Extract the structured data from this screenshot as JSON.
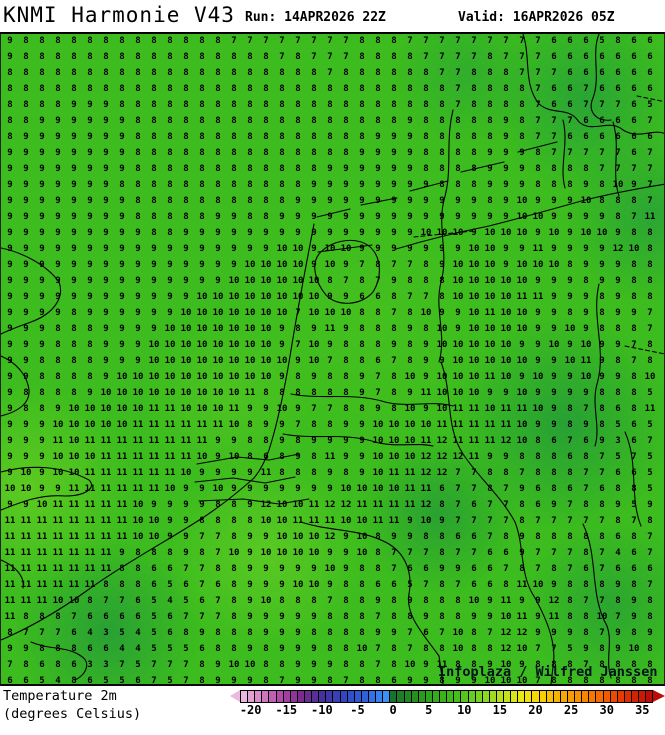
{
  "header": {
    "title": "KNMI Harmonie V43",
    "run_label": "Run: 14APR2026 22Z",
    "valid_label": "Valid: 16APR2026 05Z"
  },
  "map": {
    "attribution": "Infoplaza / Wilfred Janssen"
  },
  "footer": {
    "label_line1": "Temperature 2m",
    "label_line2": "(degrees Celsius)"
  },
  "chart_data": {
    "type": "heatmap",
    "title": "KNMI Harmonie V43 2m temperature",
    "run": "14APR2026 22Z",
    "valid": "16APR2026 05Z",
    "units": "degrees Celsius",
    "grid_note": "41x41 point values (degC) read left-to-right, top-to-bottom over North Sea / Netherlands / NW Germany domain",
    "grid_values": [
      "9 8 8 8 8 8 8 8 8 8 8 8 8 8 7 7 7 7 7 7 7 7 8 8 8 7 7 7 7 7 7 7 7 7 6 6 6 5 8 6 6",
      "9 8 8 8 8 8 8 8 8 8 8 8 8 8 8 8 8 7 8 7 7 7 8 8 8 8 7 7 7 7 8 7 7 7 6 6 6 6 6 6 6",
      "8 8 8 8 8 8 8 8 8 8 8 8 8 8 8 8 8 8 8 8 7 8 8 8 8 8 8 7 7 8 8 8 7 7 7 6 6 6 6 6 6",
      "8 8 8 8 8 8 8 8 8 8 8 8 8 8 8 8 8 8 8 8 8 8 8 8 8 8 8 8 7 8 8 8 8 7 6 6 7 6 6 6 6",
      "8 8 8 8 9 9 9 8 8 8 8 8 8 8 8 8 8 8 8 8 8 8 8 8 8 8 8 8 7 8 8 8 8 7 6 6 7 7 7 6 5",
      "8 8 9 9 9 9 9 9 8 8 8 8 8 8 8 8 8 8 8 8 8 8 8 8 8 9 8 8 8 8 8 9 8 7 7 7 6 6 6 6 7",
      "8 9 9 9 9 9 9 9 8 8 8 8 8 8 8 8 8 8 8 8 8 8 8 9 9 9 8 8 8 8 8 9 8 7 7 6 6 6 6 6 6",
      "9 9 9 9 9 9 9 9 8 8 8 8 8 8 8 8 8 8 8 8 8 8 9 9 9 9 8 8 8 8 9 9 9 8 7 7 7 7 7 6 7",
      "9 9 9 9 9 9 9 9 8 8 8 8 8 8 8 8 8 8 8 8 9 9 9 9 9 9 8 8 8 8 9 9 9 8 8 8 8 7 7 7 7",
      "9 9 9 9 9 9 9 8 8 8 8 8 8 8 8 8 8 8 8 9 9 9 9 9 9 9 9 8 8 8 9 9 9 8 8 8 9 8 10 9 7",
      "9 9 9 9 9 9 9 9 8 8 8 8 8 8 8 8 8 8 9 9 9 9 9 9 9 9 9 9 9 9 8 9 10 9 9 9 10 8 8 8 7",
      "9 9 9 9 9 9 9 9 8 8 8 8 8 9 9 8 8 9 9 9 9 9 9 9 9 9 9 9 9 9 9 9 10 10 9 9 9 9 8 7 11",
      "9 9 9 9 9 9 9 9 9 8 8 9 9 9 9 9 9 9 9 9 9 9 9 9 9 9 10 10 10 9 10 10 10 9 10 9 10 10 9 8 8",
      "9 9 9 9 9 9 9 9 9 9 9 9 9 9 9 9 9 10 10 9 10 10 9 9 9 9 9 9 9 10 10 9 9 11 9 9 9 9 12 10 8",
      "9 9 9 9 9 9 9 9 9 9 9 9 9 9 9 10 10 10 10 9 10 9 7 8 7 7 8 9 10 10 10 9 10 10 10 8 9 9 9 8 8",
      "9 9 9 9 9 9 9 9 9 9 9 9 9 9 10 10 10 10 10 10 8 7 8 7 9 8 8 8 10 10 10 10 10 9 9 9 8 9 9 8 8",
      "9 9 9 9 9 9 9 9 9 9 9 9 10 10 10 10 10 10 10 10 9 9 6 6 8 7 7 8 10 10 10 10 11 11 9 9 9 8 9 8 8",
      "9 9 9 9 8 9 9 9 9 9 9 10 10 10 10 10 10 10 7 10 10 10 8 8 7 8 10 9 9 10 11 10 10 9 9 8 9 8 9 9 7",
      "9 9 9 8 8 8 9 9 9 9 10 10 10 10 10 10 10 9 8 9 11 9 8 8 8 9 8 10 9 10 10 10 10 9 9 10 9 8 8 8 7",
      "9 9 9 8 8 8 9 9 9 10 10 10 10 10 10 10 10 9 7 10 9 8 8 8 9 8 9 10 10 10 10 10 9 9 10 9 10 9 9 7 8",
      "9 9 8 8 8 8 9 9 9 10 10 10 10 10 10 10 10 10 9 10 7 8 8 6 7 8 9 9 10 10 10 10 10 9 9 10 11 9 8 7 8",
      "9 9 8 8 8 8 9 10 10 10 10 10 10 10 10 10 10 9 8 9 8 8 9 7 8 10 9 10 10 10 11 10 9 10 9 9 10 9 9 8 10",
      "9 8 8 8 8 9 10 10 10 10 10 10 10 10 10 11 8 8 8 8 8 8 9 7 8 9 11 10 10 10 9 9 10 9 9 9 9 8 8 8 5",
      "9 8 8 9 10 10 10 10 10 11 11 10 10 10 11 9 9 10 9 7 7 8 8 9 8 10 9 10 11 11 10 11 11 10 9 8 7 8 6 8 11",
      "9 9 9 10 10 10 10 10 11 11 11 11 11 11 10 8 9 9 7 8 8 9 9 10 10 10 10 11 11 11 11 11 10 9 9 8 9 8 5 6 5",
      "9 9 9 11 10 11 11 11 11 11 11 11 11 9 9 8 8 9 8 9 9 9 9 10 10 10 11 12 11 11 11 12 10 8 6 7 6 9 3 6 7",
      "9 9 9 10 10 10 11 11 11 11 11 11 10 9 10 8 6 8 9 8 11 9 9 10 10 10 12 12 12 11 9 9 8 8 8 6 8 7 5 7 5",
      "9 10 9 10 10 11 11 11 11 11 11 10 9 9 9 9 11 8 8 8 9 8 9 10 11 11 12 12 7 7 8 8 7 8 8 8 7 7 6 6 5",
      "10 10 9 9 11 11 11 11 11 11 10 9 9 10 9 9 9 9 9 9 9 10 10 10 10 11 11 6 7 7 8 7 9 6 8 6 7 6 8 8 5",
      "9 9 10 11 11 11 11 11 10 9 9 9 9 8 8 9 12 10 10 11 12 12 11 11 11 11 12 8 7 6 7 7 8 6 9 7 8 8 9 5 9",
      "11 11 11 11 11 11 11 11 10 10 9 9 8 8 8 8 10 10 11 11 11 10 10 11 11 9 10 9 7 7 7 7 8 7 7 7 7 7 8 7 8",
      "11 11 11 11 11 11 11 11 10 10 9 9 7 7 8 9 9 10 10 10 12 9 10 8 9 9 8 8 6 6 7 8 9 8 8 8 8 8 6 8 7",
      "11 11 11 11 11 11 11 9 8 8 8 9 8 7 10 9 10 10 10 10 9 9 10 8 7 7 7 8 7 7 6 6 9 7 7 7 8 7 4 6 7",
      "11 11 11 11 11 11 11 8 8 6 6 7 7 8 8 9 9 9 9 9 10 9 8 8 7 6 6 9 9 6 6 7 8 7 8 7 6 7 6 6 6",
      "11 11 11 11 11 11 8 8 8 6 5 6 7 6 8 9 9 9 10 10 9 8 8 6 6 5 7 8 7 6 6 8 11 10 9 8 8 8 9 8 7",
      "11 11 11 10 10 8 7 7 6 5 4 5 6 7 8 9 10 8 8 8 7 8 8 9 8 9 8 8 8 10 9 11 9 9 12 8 7 7 8 9 8",
      "11 8 8 8 7 6 6 6 6 5 6 7 7 7 8 9 9 9 9 9 8 8 8 7 8 8 9 8 8 9 9 10 11 9 11 8 8 10 7 9 8",
      "8 7 7 7 6 4 3 5 4 5 6 8 9 8 8 8 9 9 9 8 8 8 8 9 9 7 6 7 10 8 7 12 12 9 9 9 8 7 9 8 9",
      "9 9 8 8 8 6 6 4 4 5 5 5 6 8 8 9 8 9 9 9 8 8 10 7 8 7 8 8 10 8 8 12 10 7 7 5 9 8 9 10 8",
      "7 8 6 8 6 3 3 7 5 7 7 7 8 9 10 10 8 8 9 9 9 8 8 7 8 10 9 11 8 8 9 10 9 8 8 8 7 8 8 8 8",
      "6 6 5 4 8 6 5 5 6 7 5 7 8 9 9 9 8 7 9 9 8 7 8 8 6 9 9 8 9 9 10 10 10 7 8 8 8 8 8 8 8"
    ],
    "colorbar": {
      "range": [
        -21,
        36
      ],
      "ticks": [
        -20,
        -15,
        -10,
        -5,
        0,
        5,
        10,
        15,
        20,
        25,
        30,
        35
      ],
      "cold_stops": [
        [
          -22,
          "#f2cce8"
        ],
        [
          -19,
          "#d88cc8"
        ],
        [
          -16,
          "#b44aa8"
        ],
        [
          -13,
          "#7c2a8e"
        ],
        [
          -10,
          "#46309c"
        ],
        [
          -7,
          "#3246c0"
        ],
        [
          -4,
          "#2d62dc"
        ],
        [
          -1,
          "#3a90f6"
        ]
      ],
      "warm_stops": [
        [
          0,
          "#1a7230"
        ],
        [
          3,
          "#25901e"
        ],
        [
          6,
          "#33ac1b"
        ],
        [
          9,
          "#46be1b"
        ],
        [
          12,
          "#78d224"
        ],
        [
          15,
          "#b4e020"
        ],
        [
          18,
          "#e8e815"
        ],
        [
          20,
          "#f6d908"
        ],
        [
          23,
          "#f7b403"
        ],
        [
          26,
          "#f79200"
        ],
        [
          29,
          "#f76a00"
        ],
        [
          32,
          "#e73a00"
        ],
        [
          35,
          "#cb1703"
        ],
        [
          36,
          "#bb0e06"
        ]
      ]
    }
  }
}
